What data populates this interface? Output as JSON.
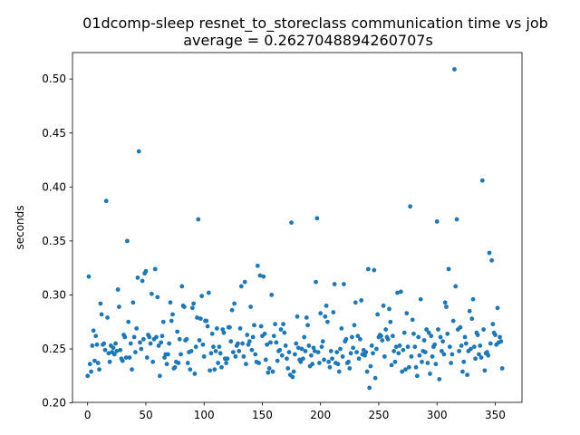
{
  "chart_data": {
    "type": "scatter",
    "title": "01dcomp-sleep resnet_to_storeclass communication time vs job",
    "subtitle": "average = 0.2627048894260707s",
    "xlabel": "",
    "ylabel": "seconds",
    "xlim": [
      -13,
      373
    ],
    "ylim": [
      0.2005,
      0.5245
    ],
    "xticks": [
      0,
      50,
      100,
      150,
      200,
      250,
      300,
      350
    ],
    "yticks": [
      0.2,
      0.25,
      0.3,
      0.35,
      0.4,
      0.45,
      0.5
    ],
    "ytick_labels": [
      "0.20",
      "0.25",
      "0.30",
      "0.35",
      "0.40",
      "0.45",
      "0.50"
    ],
    "grid": false,
    "marker_color": "#1f77b4",
    "points": [
      [
        0,
        0.225
      ],
      [
        1,
        0.317
      ],
      [
        2,
        0.236
      ],
      [
        3,
        0.229
      ],
      [
        4,
        0.253
      ],
      [
        5,
        0.267
      ],
      [
        6,
        0.239
      ],
      [
        7,
        0.262
      ],
      [
        8,
        0.254
      ],
      [
        9,
        0.237
      ],
      [
        10,
        0.231
      ],
      [
        11,
        0.292
      ],
      [
        12,
        0.282
      ],
      [
        13,
        0.254
      ],
      [
        14,
        0.255
      ],
      [
        15,
        0.249
      ],
      [
        16,
        0.387
      ],
      [
        17,
        0.279
      ],
      [
        18,
        0.246
      ],
      [
        19,
        0.238
      ],
      [
        20,
        0.253
      ],
      [
        21,
        0.247
      ],
      [
        22,
        0.251
      ],
      [
        23,
        0.245
      ],
      [
        24,
        0.255
      ],
      [
        25,
        0.248
      ],
      [
        26,
        0.305
      ],
      [
        27,
        0.289
      ],
      [
        28,
        0.249
      ],
      [
        29,
        0.241
      ],
      [
        30,
        0.239
      ],
      [
        31,
        0.263
      ],
      [
        32,
        0.261
      ],
      [
        33,
        0.242
      ],
      [
        34,
        0.35
      ],
      [
        35,
        0.275
      ],
      [
        36,
        0.242
      ],
      [
        37,
        0.255
      ],
      [
        38,
        0.231
      ],
      [
        39,
        0.293
      ],
      [
        40,
        0.261
      ],
      [
        41,
        0.247
      ],
      [
        42,
        0.269
      ],
      [
        43,
        0.316
      ],
      [
        44,
        0.433
      ],
      [
        45,
        0.256
      ],
      [
        46,
        0.25
      ],
      [
        47,
        0.313
      ],
      [
        48,
        0.259
      ],
      [
        49,
        0.32
      ],
      [
        50,
        0.322
      ],
      [
        51,
        0.242
      ],
      [
        52,
        0.263
      ],
      [
        53,
        0.261
      ],
      [
        54,
        0.255
      ],
      [
        55,
        0.301
      ],
      [
        56,
        0.238
      ],
      [
        57,
        0.259
      ],
      [
        58,
        0.324
      ],
      [
        59,
        0.261
      ],
      [
        60,
        0.298
      ],
      [
        61,
        0.253
      ],
      [
        62,
        0.225
      ],
      [
        63,
        0.256
      ],
      [
        64,
        0.262
      ],
      [
        65,
        0.275
      ],
      [
        66,
        0.242
      ],
      [
        67,
        0.245
      ],
      [
        68,
        0.236
      ],
      [
        69,
        0.245
      ],
      [
        70,
        0.255
      ],
      [
        71,
        0.293
      ],
      [
        72,
        0.276
      ],
      [
        73,
        0.282
      ],
      [
        74,
        0.232
      ],
      [
        75,
        0.233
      ],
      [
        76,
        0.238
      ],
      [
        77,
        0.266
      ],
      [
        78,
        0.237
      ],
      [
        79,
        0.259
      ],
      [
        80,
        0.245
      ],
      [
        81,
        0.308
      ],
      [
        82,
        0.29
      ],
      [
        83,
        0.289
      ],
      [
        84,
        0.258
      ],
      [
        85,
        0.259
      ],
      [
        86,
        0.237
      ],
      [
        87,
        0.247
      ],
      [
        88,
        0.231
      ],
      [
        89,
        0.248
      ],
      [
        90,
        0.288
      ],
      [
        91,
        0.292
      ],
      [
        92,
        0.227
      ],
      [
        93,
        0.252
      ],
      [
        94,
        0.279
      ],
      [
        95,
        0.37
      ],
      [
        96,
        0.258
      ],
      [
        97,
        0.278
      ],
      [
        98,
        0.299
      ],
      [
        99,
        0.254
      ],
      [
        100,
        0.243
      ],
      [
        101,
        0.276
      ],
      [
        102,
        0.276
      ],
      [
        103,
        0.271
      ],
      [
        104,
        0.302
      ],
      [
        105,
        0.23
      ],
      [
        106,
        0.246
      ],
      [
        107,
        0.264
      ],
      [
        108,
        0.252
      ],
      [
        109,
        0.231
      ],
      [
        110,
        0.248
      ],
      [
        111,
        0.269
      ],
      [
        112,
        0.237
      ],
      [
        113,
        0.252
      ],
      [
        114,
        0.246
      ],
      [
        115,
        0.233
      ],
      [
        116,
        0.268
      ],
      [
        117,
        0.265
      ],
      [
        118,
        0.241
      ],
      [
        119,
        0.237
      ],
      [
        120,
        0.241
      ],
      [
        121,
        0.27
      ],
      [
        122,
        0.27
      ],
      [
        123,
        0.257
      ],
      [
        124,
        0.286
      ],
      [
        125,
        0.247
      ],
      [
        126,
        0.292
      ],
      [
        127,
        0.243
      ],
      [
        128,
        0.253
      ],
      [
        129,
        0.255
      ],
      [
        130,
        0.248
      ],
      [
        131,
        0.269
      ],
      [
        132,
        0.308
      ],
      [
        133,
        0.255
      ],
      [
        134,
        0.243
      ],
      [
        135,
        0.312
      ],
      [
        136,
        0.236
      ],
      [
        137,
        0.263
      ],
      [
        138,
        0.254
      ],
      [
        139,
        0.257
      ],
      [
        140,
        0.289
      ],
      [
        141,
        0.249
      ],
      [
        142,
        0.261
      ],
      [
        143,
        0.272
      ],
      [
        144,
        0.245
      ],
      [
        145,
        0.238
      ],
      [
        146,
        0.327
      ],
      [
        147,
        0.237
      ],
      [
        148,
        0.318
      ],
      [
        149,
        0.271
      ],
      [
        150,
        0.262
      ],
      [
        151,
        0.317
      ],
      [
        152,
        0.264
      ],
      [
        153,
        0.24
      ],
      [
        154,
        0.254
      ],
      [
        155,
        0.228
      ],
      [
        156,
        0.232
      ],
      [
        157,
        0.256
      ],
      [
        158,
        0.3
      ],
      [
        159,
        0.229
      ],
      [
        160,
        0.262
      ],
      [
        161,
        0.273
      ],
      [
        162,
        0.256
      ],
      [
        163,
        0.239
      ],
      [
        164,
        0.248
      ],
      [
        165,
        0.249
      ],
      [
        166,
        0.268
      ],
      [
        167,
        0.244
      ],
      [
        168,
        0.273
      ],
      [
        169,
        0.265
      ],
      [
        170,
        0.253
      ],
      [
        171,
        0.241
      ],
      [
        172,
        0.232
      ],
      [
        173,
        0.247
      ],
      [
        174,
        0.226
      ],
      [
        175,
        0.367
      ],
      [
        176,
        0.224
      ],
      [
        177,
        0.229
      ],
      [
        178,
        0.245
      ],
      [
        179,
        0.255
      ],
      [
        180,
        0.28
      ],
      [
        181,
        0.251
      ],
      [
        182,
        0.24
      ],
      [
        183,
        0.238
      ],
      [
        184,
        0.25
      ],
      [
        185,
        0.241
      ],
      [
        186,
        0.261
      ],
      [
        187,
        0.248
      ],
      [
        188,
        0.279
      ],
      [
        189,
        0.272
      ],
      [
        190,
        0.253
      ],
      [
        191,
        0.234
      ],
      [
        192,
        0.244
      ],
      [
        193,
        0.236
      ],
      [
        194,
        0.251
      ],
      [
        195,
        0.248
      ],
      [
        196,
        0.312
      ],
      [
        197,
        0.371
      ],
      [
        198,
        0.247
      ],
      [
        199,
        0.237
      ],
      [
        200,
        0.283
      ],
      [
        201,
        0.252
      ],
      [
        202,
        0.257
      ],
      [
        203,
        0.24
      ],
      [
        204,
        0.28
      ],
      [
        205,
        0.29
      ],
      [
        206,
        0.275
      ],
      [
        207,
        0.238
      ],
      [
        208,
        0.233
      ],
      [
        209,
        0.248
      ],
      [
        210,
        0.241
      ],
      [
        211,
        0.284
      ],
      [
        212,
        0.31
      ],
      [
        213,
        0.237
      ],
      [
        214,
        0.247
      ],
      [
        215,
        0.236
      ],
      [
        216,
        0.229
      ],
      [
        217,
        0.25
      ],
      [
        218,
        0.269
      ],
      [
        219,
        0.243
      ],
      [
        220,
        0.31
      ],
      [
        221,
        0.257
      ],
      [
        222,
        0.259
      ],
      [
        223,
        0.237
      ],
      [
        224,
        0.238
      ],
      [
        225,
        0.232
      ],
      [
        226,
        0.246
      ],
      [
        227,
        0.261
      ],
      [
        228,
        0.251
      ],
      [
        229,
        0.272
      ],
      [
        230,
        0.293
      ],
      [
        231,
        0.247
      ],
      [
        232,
        0.262
      ],
      [
        233,
        0.241
      ],
      [
        234,
        0.259
      ],
      [
        235,
        0.295
      ],
      [
        236,
        0.245
      ],
      [
        237,
        0.249
      ],
      [
        238,
        0.244
      ],
      [
        239,
        0.247
      ],
      [
        240,
        0.229
      ],
      [
        241,
        0.324
      ],
      [
        242,
        0.214
      ],
      [
        243,
        0.234
      ],
      [
        244,
        0.253
      ],
      [
        245,
        0.246
      ],
      [
        246,
        0.323
      ],
      [
        247,
        0.223
      ],
      [
        248,
        0.25
      ],
      [
        249,
        0.282
      ],
      [
        250,
        0.261
      ],
      [
        251,
        0.263
      ],
      [
        252,
        0.262
      ],
      [
        253,
        0.258
      ],
      [
        254,
        0.29
      ],
      [
        255,
        0.243
      ],
      [
        256,
        0.268
      ],
      [
        257,
        0.261
      ],
      [
        258,
        0.259
      ],
      [
        259,
        0.287
      ],
      [
        260,
        0.275
      ],
      [
        261,
        0.235
      ],
      [
        262,
        0.262
      ],
      [
        263,
        0.248
      ],
      [
        264,
        0.238
      ],
      [
        265,
        0.252
      ],
      [
        266,
        0.302
      ],
      [
        267,
        0.246
      ],
      [
        268,
        0.253
      ],
      [
        269,
        0.303
      ],
      [
        270,
        0.229
      ],
      [
        271,
        0.249
      ],
      [
        272,
        0.265
      ],
      [
        273,
        0.231
      ],
      [
        274,
        0.283
      ],
      [
        275,
        0.252
      ],
      [
        276,
        0.233
      ],
      [
        277,
        0.382
      ],
      [
        278,
        0.243
      ],
      [
        279,
        0.277
      ],
      [
        280,
        0.264
      ],
      [
        281,
        0.252
      ],
      [
        282,
        0.233
      ],
      [
        283,
        0.225
      ],
      [
        284,
        0.261
      ],
      [
        285,
        0.244
      ],
      [
        286,
        0.296
      ],
      [
        287,
        0.238
      ],
      [
        288,
        0.248
      ],
      [
        289,
        0.258
      ],
      [
        290,
        0.247
      ],
      [
        291,
        0.268
      ],
      [
        292,
        0.237
      ],
      [
        293,
        0.265
      ],
      [
        294,
        0.227
      ],
      [
        295,
        0.262
      ],
      [
        296,
        0.243
      ],
      [
        297,
        0.252
      ],
      [
        298,
        0.254
      ],
      [
        299,
        0.236
      ],
      [
        300,
        0.368
      ],
      [
        301,
        0.268
      ],
      [
        302,
        0.222
      ],
      [
        303,
        0.261
      ],
      [
        304,
        0.248
      ],
      [
        305,
        0.257
      ],
      [
        306,
        0.245
      ],
      [
        307,
        0.293
      ],
      [
        308,
        0.289
      ],
      [
        309,
        0.264
      ],
      [
        310,
        0.324
      ],
      [
        311,
        0.252
      ],
      [
        312,
        0.237
      ],
      [
        313,
        0.245
      ],
      [
        314,
        0.276
      ],
      [
        315,
        0.509
      ],
      [
        316,
        0.308
      ],
      [
        317,
        0.37
      ],
      [
        318,
        0.268
      ],
      [
        319,
        0.248
      ],
      [
        320,
        0.27
      ],
      [
        321,
        0.253
      ],
      [
        322,
        0.229
      ],
      [
        323,
        0.238
      ],
      [
        324,
        0.261
      ],
      [
        325,
        0.255
      ],
      [
        326,
        0.226
      ],
      [
        327,
        0.248
      ],
      [
        328,
        0.285
      ],
      [
        329,
        0.25
      ],
      [
        330,
        0.278
      ],
      [
        331,
        0.296
      ],
      [
        332,
        0.252
      ],
      [
        333,
        0.241
      ],
      [
        334,
        0.265
      ],
      [
        335,
        0.263
      ],
      [
        336,
        0.245
      ],
      [
        337,
        0.253
      ],
      [
        338,
        0.242
      ],
      [
        339,
        0.406
      ],
      [
        340,
        0.268
      ],
      [
        341,
        0.23
      ],
      [
        342,
        0.246
      ],
      [
        343,
        0.247
      ],
      [
        344,
        0.244
      ],
      [
        345,
        0.339
      ],
      [
        346,
        0.255
      ],
      [
        347,
        0.332
      ],
      [
        348,
        0.273
      ],
      [
        349,
        0.265
      ],
      [
        350,
        0.263
      ],
      [
        351,
        0.254
      ],
      [
        352,
        0.288
      ],
      [
        353,
        0.256
      ],
      [
        354,
        0.261
      ],
      [
        355,
        0.257
      ],
      [
        356,
        0.232
      ]
    ]
  }
}
